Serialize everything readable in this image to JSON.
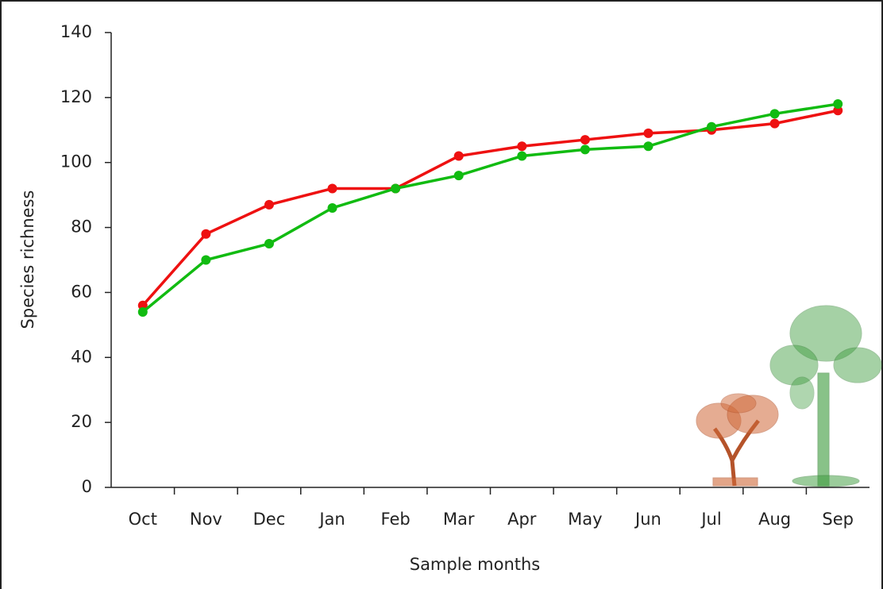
{
  "chart_data": {
    "type": "line",
    "xlabel": "Sample months",
    "ylabel": "Species richness",
    "categories": [
      "Oct",
      "Nov",
      "Dec",
      "Jan",
      "Feb",
      "Mar",
      "Apr",
      "May",
      "Jun",
      "Jul",
      "Aug",
      "Sep"
    ],
    "series": [
      {
        "color": "#ee1111",
        "values": [
          56,
          78,
          87,
          92,
          92,
          102,
          105,
          107,
          109,
          110,
          112,
          116
        ]
      },
      {
        "color": "#11bb11",
        "values": [
          54,
          70,
          75,
          86,
          92,
          96,
          102,
          104,
          105,
          111,
          115,
          118
        ]
      }
    ],
    "ylim": [
      0,
      140
    ],
    "yticks": [
      0,
      20,
      40,
      60,
      80,
      100,
      120,
      140
    ]
  }
}
